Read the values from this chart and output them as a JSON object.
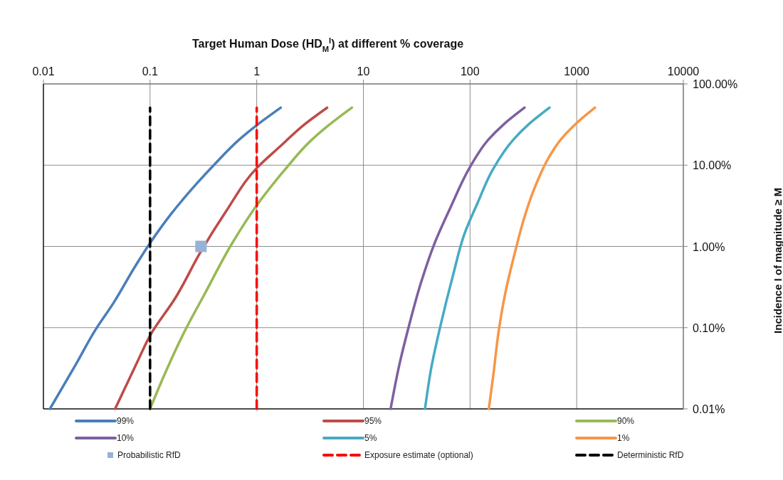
{
  "chart_data": {
    "type": "line",
    "title": "Target Human Dose (HD$_{M}$$^{I}$) at different % coverage",
    "ylabel": "Incidence I of magnitude ≥ M",
    "log": "xy",
    "grid": true,
    "legend": "bottom",
    "marker": "none",
    "line_style": "solid",
    "xlim": [
      0.01,
      10000
    ],
    "xticks": [
      0.01,
      0.1,
      1,
      10,
      100,
      1000,
      10000
    ],
    "ylim": [
      0.01,
      100
    ],
    "yticks": [
      {
        "value": 0.01,
        "label": "0.01%"
      },
      {
        "value": 0.1,
        "label": "0.10%"
      },
      {
        "value": 1,
        "label": "1.00%"
      },
      {
        "value": 10,
        "label": "10.00%"
      },
      {
        "value": 100,
        "label": "100.00%"
      }
    ],
    "series": [
      {
        "name": "99%",
        "color": "#4a7ebb",
        "x": [
          0.0115,
          0.0202,
          0.0303,
          0.0457,
          0.072,
          0.1,
          0.156,
          0.26,
          0.39,
          0.69,
          1,
          1.68
        ],
        "values": [
          0.01,
          0.0355,
          0.091,
          0.204,
          0.56,
          1.1,
          2.47,
          5.5,
          9.8,
          20.8,
          31,
          51
        ]
      },
      {
        "name": "95%",
        "color": "#be4b48",
        "x": [
          0.047,
          0.076,
          0.1,
          0.173,
          0.3,
          0.51,
          1,
          1.64,
          2.81,
          4.57
        ],
        "values": [
          0.01,
          0.038,
          0.08,
          0.233,
          0.87,
          2.64,
          9.2,
          16.8,
          31.8,
          51
        ]
      },
      {
        "name": "90%",
        "color": "#98b954",
        "x": [
          0.1,
          0.134,
          0.223,
          0.32,
          0.59,
          1,
          1.77,
          3.2,
          4.7,
          7.8
        ],
        "values": [
          0.01,
          0.025,
          0.104,
          0.25,
          1.1,
          3.2,
          8.3,
          19.9,
          30.8,
          51
        ]
      },
      {
        "name": "10%",
        "color": "#7d60a0",
        "x": [
          18,
          21.8,
          26.7,
          34.5,
          45.7,
          65.5,
          100,
          148,
          207,
          324
        ],
        "values": [
          0.01,
          0.0355,
          0.104,
          0.35,
          1.03,
          3,
          9.5,
          20.5,
          31.8,
          51
        ]
      },
      {
        "name": "5%",
        "color": "#46aac5",
        "x": [
          37.8,
          43.5,
          53.3,
          68.9,
          88.9,
          118,
          164,
          254,
          354,
          556
        ],
        "values": [
          0.01,
          0.033,
          0.111,
          0.43,
          1.44,
          3.45,
          8.9,
          20.5,
          31.8,
          51
        ]
      },
      {
        "name": "1%",
        "color": "#f79646",
        "x": [
          150,
          164,
          187,
          212,
          267,
          319,
          402,
          547,
          706,
          1000,
          1483
        ],
        "values": [
          0.01,
          0.024,
          0.097,
          0.25,
          0.9,
          2.15,
          5.2,
          12.4,
          20.5,
          33,
          51
        ]
      },
      {
        "name": "Probabilistic RfD",
        "type": "scatter",
        "marker": "square",
        "color": "#95b3d7",
        "x": [
          0.3
        ],
        "values": [
          1
        ]
      },
      {
        "name": "Exposure estimate (optional)",
        "color": "#ff0000",
        "line_style": "dashed",
        "x": [
          1,
          1
        ],
        "values": [
          0.01,
          51
        ]
      },
      {
        "name": "Deterministic RfD",
        "color": "#000000",
        "line_style": "dashed",
        "x": [
          0.1,
          0.1
        ],
        "values": [
          0.01,
          51
        ]
      }
    ]
  }
}
